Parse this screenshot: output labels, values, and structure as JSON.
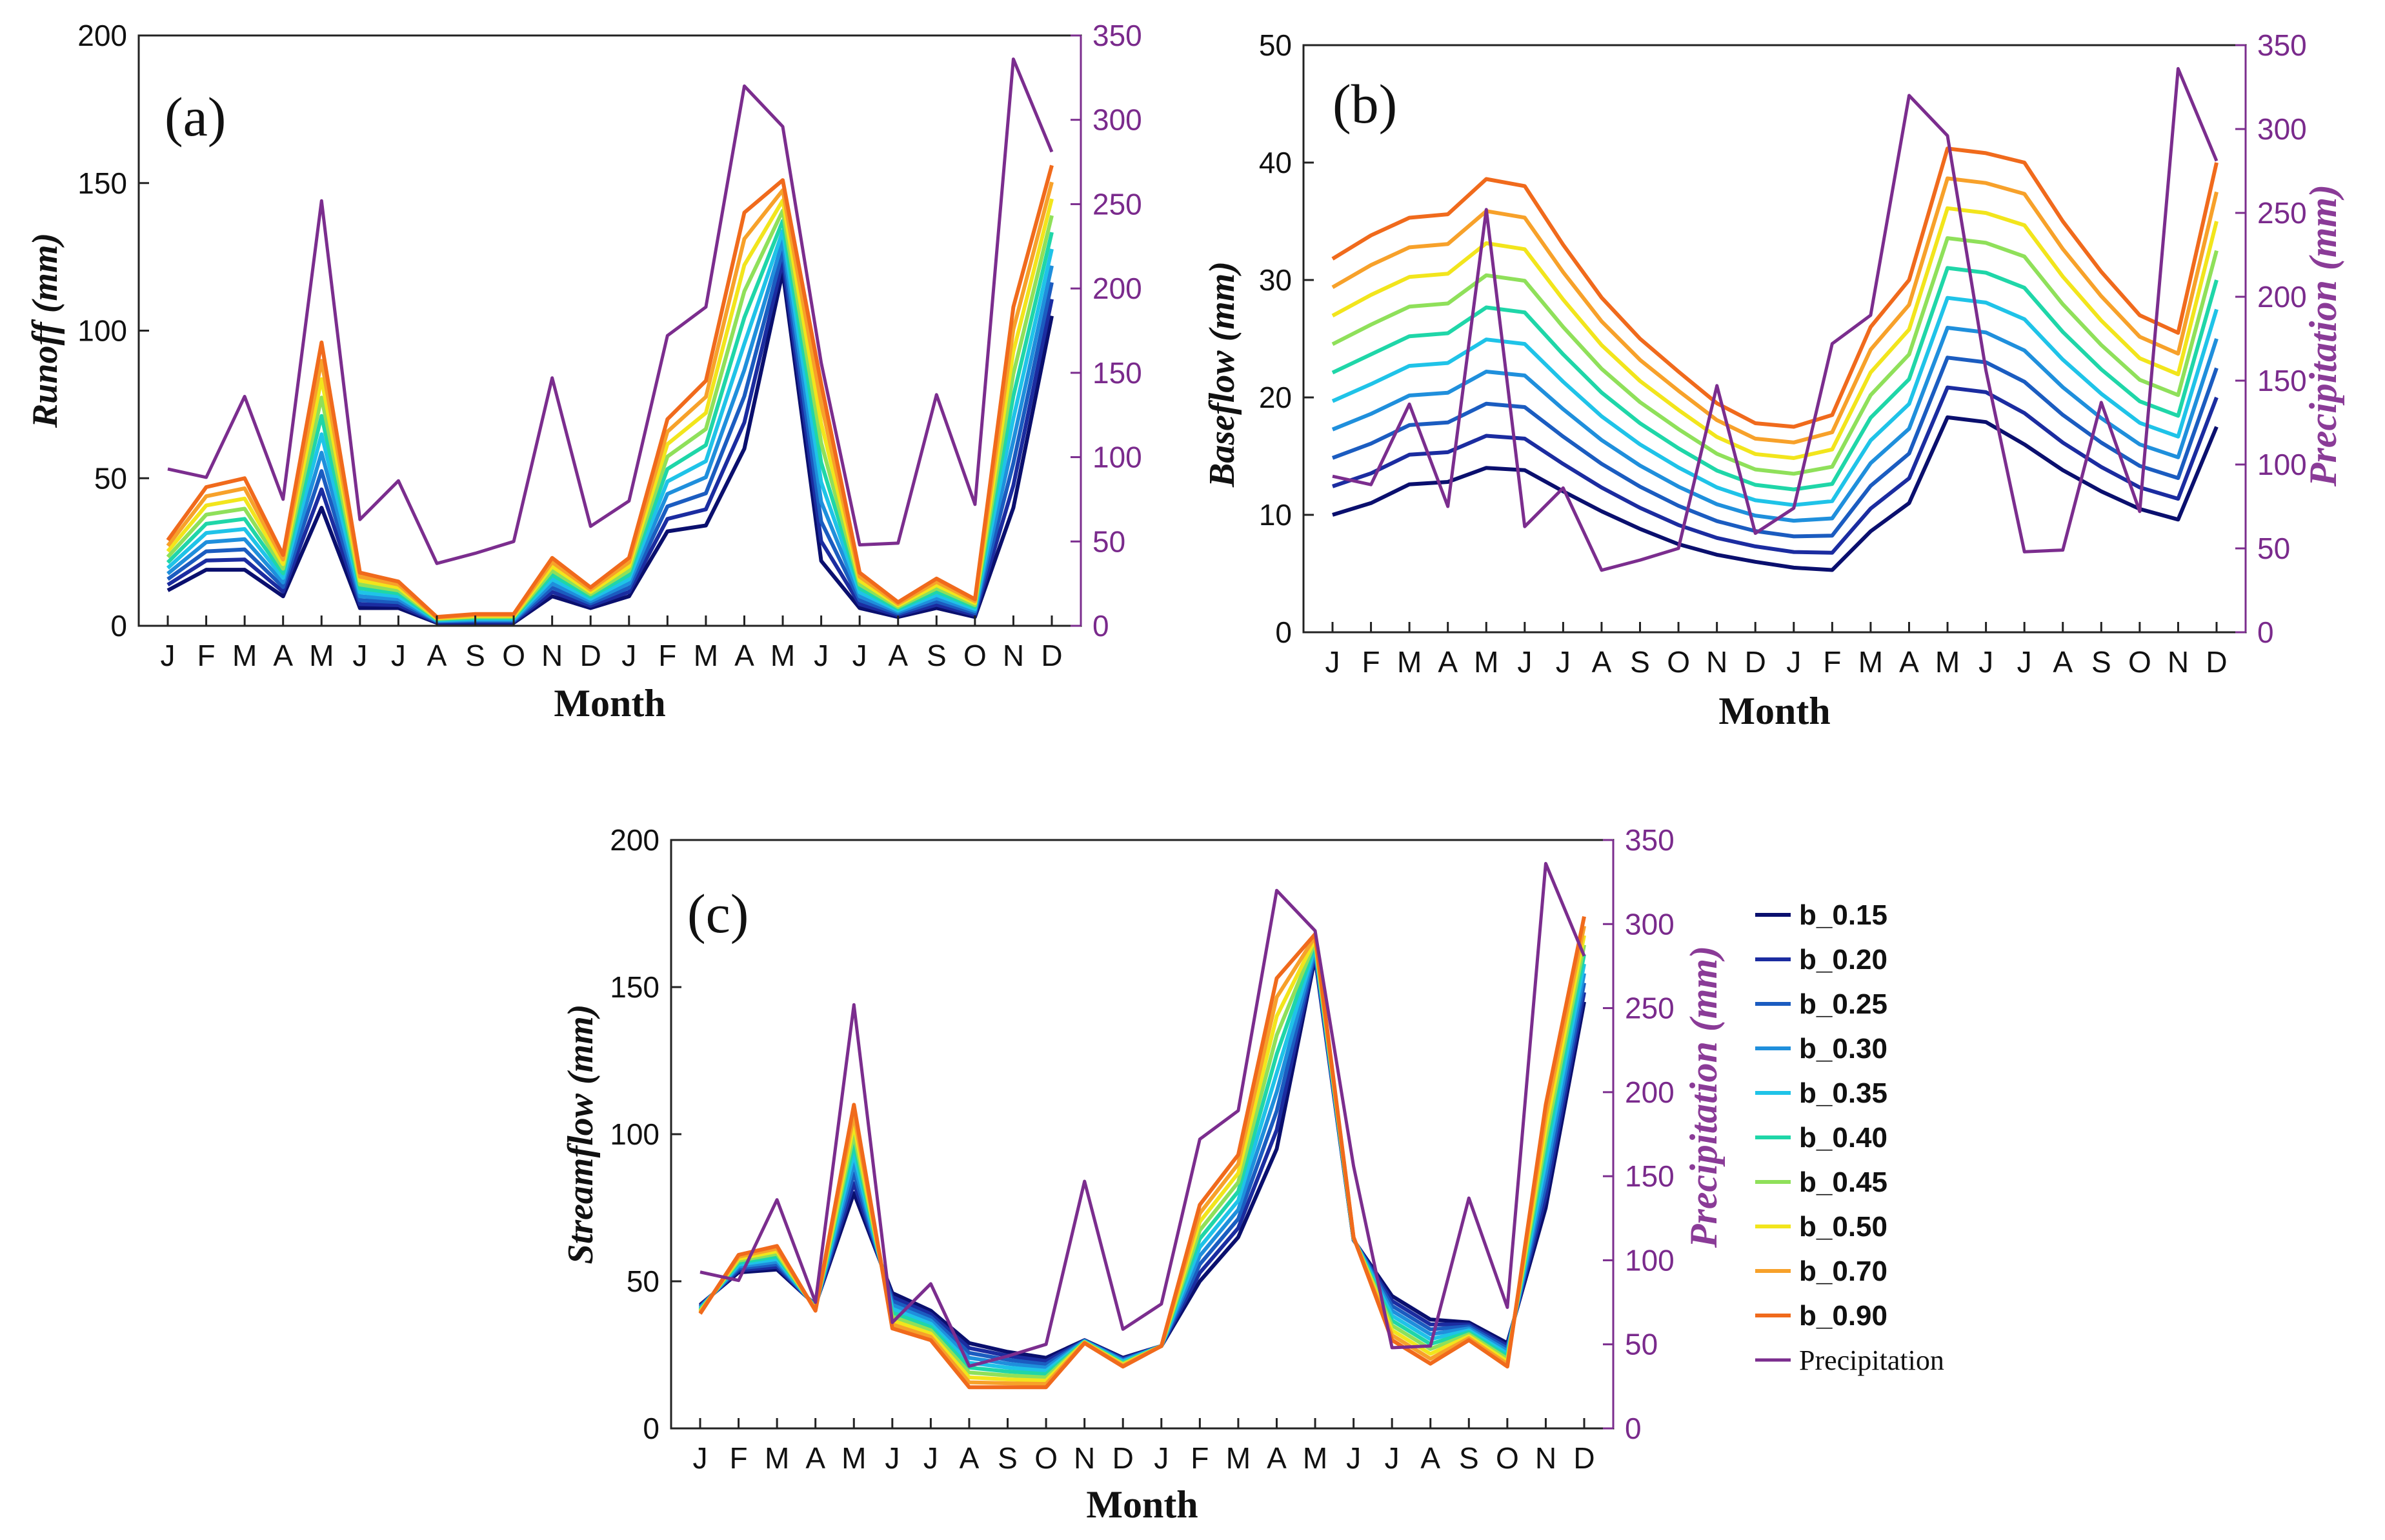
{
  "colors": {
    "precipitation": "#7b2d8e",
    "series": [
      "#0a0f6e",
      "#1b2ca0",
      "#1b5cc0",
      "#1f8fdc",
      "#1fc3e8",
      "#1fd6a8",
      "#8fe05a",
      "#f2e51c",
      "#f7a12a",
      "#f06a1c"
    ]
  },
  "month_labels": [
    "J",
    "F",
    "M",
    "A",
    "M",
    "J",
    "J",
    "A",
    "S",
    "O",
    "N",
    "D",
    "J",
    "F",
    "M",
    "A",
    "M",
    "J",
    "J",
    "A",
    "S",
    "O",
    "N",
    "D"
  ],
  "legend": {
    "entries": [
      "b_0.15",
      "b_0.20",
      "b_0.25",
      "b_0.30",
      "b_0.35",
      "b_0.40",
      "b_0.45",
      "b_0.50",
      "b_0.70",
      "b_0.90",
      "Precipitation"
    ]
  },
  "precipitation_series": [
    93,
    88,
    136,
    75,
    252,
    63,
    86,
    37,
    43,
    50,
    147,
    59,
    74,
    172,
    189,
    320,
    296,
    156,
    48,
    49,
    137,
    72,
    336,
    281
  ],
  "chart_data": [
    {
      "type": "line",
      "panel_label": "(a)",
      "title": "",
      "xlabel": "Month",
      "ylabel": "Runoff (mm)",
      "ylabel_right": "",
      "ylim": [
        0,
        200
      ],
      "yticks": [
        0,
        50,
        100,
        150,
        200
      ],
      "ylim_right": [
        0,
        350
      ],
      "yticks_right": [
        0,
        50,
        100,
        150,
        200,
        250,
        300,
        350
      ],
      "series_high": [
        29,
        47,
        50,
        24,
        96,
        18,
        15,
        3,
        4,
        4,
        23,
        13,
        23,
        70,
        83,
        140,
        151,
        82,
        18,
        8,
        16,
        9,
        108,
        156
      ],
      "series_low": [
        12,
        19,
        19,
        10,
        40,
        6,
        6,
        1,
        1,
        1,
        10,
        6,
        10,
        32,
        34,
        60,
        120,
        22,
        6,
        3,
        6,
        3,
        40,
        105
      ],
      "series": [
        {
          "name": "b_0.15"
        },
        {
          "name": "b_0.20"
        },
        {
          "name": "b_0.25"
        },
        {
          "name": "b_0.30"
        },
        {
          "name": "b_0.35"
        },
        {
          "name": "b_0.40"
        },
        {
          "name": "b_0.45"
        },
        {
          "name": "b_0.50"
        },
        {
          "name": "b_0.70"
        },
        {
          "name": "b_0.90"
        },
        {
          "name": "Precipitation",
          "axis": "right"
        }
      ]
    },
    {
      "type": "line",
      "panel_label": "(b)",
      "title": "",
      "xlabel": "Month",
      "ylabel": "Baseflow (mm)",
      "ylabel_right": "Precipitation (mm)",
      "ylim": [
        0,
        50
      ],
      "yticks": [
        0,
        10,
        20,
        30,
        40,
        50
      ],
      "ylim_right": [
        0,
        350
      ],
      "yticks_right": [
        0,
        50,
        100,
        150,
        200,
        250,
        300,
        350
      ],
      "series_high": [
        31.8,
        33.8,
        35.3,
        35.6,
        38.6,
        38.0,
        33.0,
        28.5,
        25.0,
        22.2,
        19.5,
        17.8,
        17.5,
        18.5,
        26.0,
        30.0,
        41.2,
        40.8,
        40.0,
        35.0,
        30.7,
        27.0,
        25.5,
        40.0
      ],
      "series_low": [
        10.0,
        11.0,
        12.6,
        12.8,
        14.0,
        13.8,
        12.0,
        10.3,
        8.8,
        7.5,
        6.6,
        6.0,
        5.5,
        5.3,
        8.6,
        11.0,
        18.3,
        17.9,
        16.0,
        13.8,
        12.0,
        10.5,
        9.6,
        17.5
      ],
      "series": [
        {
          "name": "b_0.15"
        },
        {
          "name": "b_0.20"
        },
        {
          "name": "b_0.25"
        },
        {
          "name": "b_0.30"
        },
        {
          "name": "b_0.35"
        },
        {
          "name": "b_0.40"
        },
        {
          "name": "b_0.45"
        },
        {
          "name": "b_0.50"
        },
        {
          "name": "b_0.70"
        },
        {
          "name": "b_0.90"
        },
        {
          "name": "Precipitation",
          "axis": "right"
        }
      ]
    },
    {
      "type": "line",
      "panel_label": "(c)",
      "title": "",
      "xlabel": "Month",
      "ylabel": "Streamflow (mm)",
      "ylabel_right": "Precipitation (mm)",
      "ylim": [
        0,
        200
      ],
      "yticks": [
        0,
        50,
        100,
        150,
        200
      ],
      "ylim_right": [
        0,
        350
      ],
      "yticks_right": [
        0,
        50,
        100,
        150,
        200,
        250,
        300,
        350
      ],
      "series_high": [
        39,
        59,
        62,
        40,
        110,
        34,
        30,
        14,
        14,
        14,
        29,
        21,
        28,
        76,
        93,
        153,
        168,
        65,
        30,
        22,
        30,
        21,
        110,
        174
      ],
      "series_low": [
        42,
        53,
        54,
        42,
        80,
        46,
        40,
        29,
        26,
        24,
        30,
        24,
        28,
        50,
        65,
        95,
        160,
        64,
        45,
        37,
        36,
        29,
        75,
        145
      ],
      "series": [
        {
          "name": "b_0.15"
        },
        {
          "name": "b_0.20"
        },
        {
          "name": "b_0.25"
        },
        {
          "name": "b_0.30"
        },
        {
          "name": "b_0.35"
        },
        {
          "name": "b_0.40"
        },
        {
          "name": "b_0.45"
        },
        {
          "name": "b_0.50"
        },
        {
          "name": "b_0.70"
        },
        {
          "name": "b_0.90"
        },
        {
          "name": "Precipitation",
          "axis": "right"
        }
      ]
    }
  ]
}
